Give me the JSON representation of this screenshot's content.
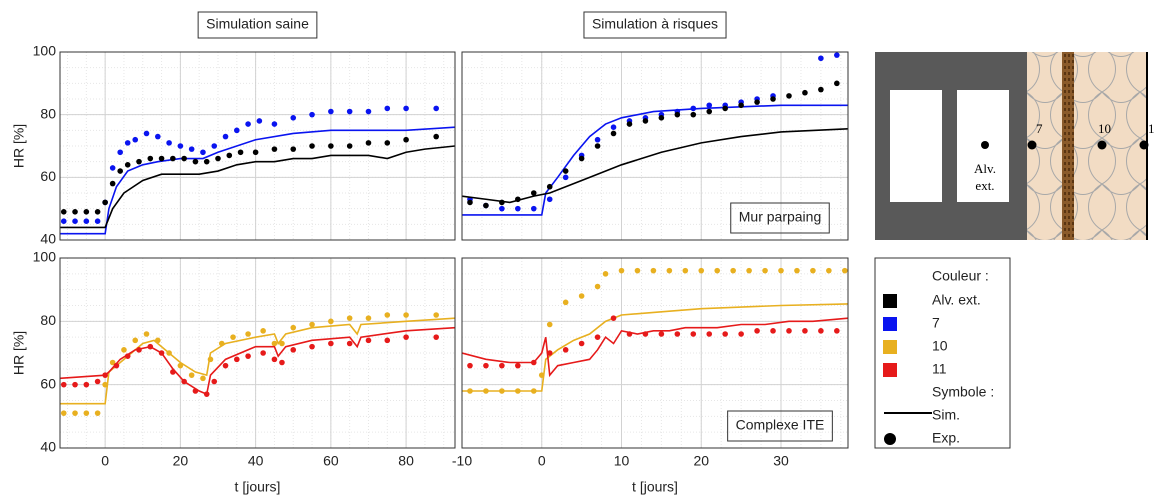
{
  "chart_data": [
    {
      "type": "line",
      "title": "Simulation saine",
      "ylabel": "HR [%]",
      "xlim": [
        -12,
        93
      ],
      "ylim": [
        40,
        100
      ],
      "xticks": [
        0,
        20,
        40,
        60,
        80
      ],
      "yticks": [
        40,
        60,
        80,
        100
      ],
      "grid": true,
      "show_xtick_labels": false,
      "show_ytick_labels": true,
      "series": [
        {
          "color": "#0a14f0",
          "marker": "line",
          "x": [
            -12,
            0,
            1,
            3,
            6,
            10,
            14,
            20,
            26,
            30,
            40,
            50,
            60,
            70,
            80,
            93
          ],
          "values": [
            42,
            42,
            50,
            57,
            62,
            64,
            65,
            66,
            66,
            68,
            72,
            74,
            75,
            75,
            75,
            76
          ]
        },
        {
          "color": "#0a14f0",
          "marker": "dot",
          "x": [
            -11,
            -8,
            -5,
            -2,
            0,
            2,
            4,
            6,
            8,
            11,
            14,
            17,
            20,
            23,
            26,
            29,
            32,
            35,
            38,
            41,
            45,
            50,
            55,
            60,
            65,
            70,
            75,
            80,
            88
          ],
          "values": [
            46,
            46,
            46,
            46,
            52,
            63,
            68,
            71,
            72,
            74,
            73,
            71,
            70,
            69,
            68,
            70,
            73,
            75,
            77,
            78,
            77,
            79,
            80,
            81,
            81,
            81,
            82,
            82,
            82
          ]
        },
        {
          "color": "#000000",
          "marker": "line",
          "x": [
            -12,
            0,
            2,
            5,
            10,
            15,
            20,
            25,
            30,
            35,
            40,
            45,
            50,
            55,
            60,
            65,
            70,
            75,
            80,
            85,
            93
          ],
          "values": [
            44,
            44,
            50,
            55,
            59,
            61,
            61,
            61,
            62,
            64,
            65,
            65,
            66,
            66,
            67,
            67,
            67,
            66,
            68,
            69,
            70
          ]
        },
        {
          "color": "#000000",
          "marker": "dot",
          "x": [
            -11,
            -8,
            -5,
            -2,
            0,
            2,
            4,
            6,
            9,
            12,
            15,
            18,
            21,
            24,
            27,
            30,
            33,
            36,
            40,
            45,
            50,
            55,
            60,
            65,
            70,
            75,
            80,
            88
          ],
          "values": [
            49,
            49,
            49,
            49,
            52,
            58,
            62,
            64,
            65,
            66,
            66,
            66,
            66,
            65,
            65,
            66,
            67,
            68,
            68,
            69,
            69,
            70,
            70,
            70,
            71,
            71,
            72,
            73
          ]
        }
      ]
    },
    {
      "type": "line",
      "title": "Simulation à risques",
      "annotation": "Mur parpaing",
      "xlim": [
        -10,
        38.4
      ],
      "ylim": [
        40,
        100
      ],
      "xticks": [
        -10,
        0,
        10,
        20,
        30
      ],
      "yticks": [
        40,
        60,
        80,
        100
      ],
      "grid": true,
      "show_xtick_labels": false,
      "show_ytick_labels": false,
      "series": [
        {
          "color": "#0a14f0",
          "marker": "line",
          "x": [
            -10,
            -5,
            0,
            0.5,
            2,
            4,
            6,
            8,
            10,
            14,
            20,
            25,
            30,
            38.4
          ],
          "values": [
            48,
            48,
            48,
            55,
            60,
            67,
            73,
            77,
            79,
            81,
            82,
            82.5,
            83,
            83
          ]
        },
        {
          "color": "#0a14f0",
          "marker": "dot",
          "x": [
            -9,
            -7,
            -5,
            -3,
            -1,
            1,
            3,
            5,
            7,
            9,
            11,
            13,
            15,
            17,
            19,
            21,
            23,
            25,
            27,
            29,
            35,
            37
          ],
          "values": [
            53,
            51,
            50,
            50,
            50,
            53,
            60,
            67,
            72,
            76,
            78,
            79,
            80,
            81,
            82,
            83,
            83,
            84,
            85,
            86,
            98,
            99
          ]
        },
        {
          "color": "#000000",
          "marker": "line",
          "x": [
            -10,
            -7,
            -4,
            -1,
            1,
            3,
            6,
            10,
            15,
            20,
            25,
            30,
            38.4
          ],
          "values": [
            54,
            53,
            52,
            54,
            55,
            57,
            60,
            64,
            68,
            71,
            73,
            74.5,
            75.5
          ]
        },
        {
          "color": "#000000",
          "marker": "dot",
          "x": [
            -9,
            -7,
            -5,
            -3,
            -1,
            1,
            3,
            5,
            7,
            9,
            11,
            13,
            15,
            17,
            19,
            21,
            23,
            25,
            27,
            29,
            31,
            33,
            35,
            37
          ],
          "values": [
            52,
            51,
            52,
            53,
            55,
            57,
            62,
            66,
            70,
            74,
            77,
            78,
            79,
            80,
            80,
            81,
            82,
            83,
            84,
            85,
            86,
            87,
            88,
            90
          ]
        }
      ]
    },
    {
      "type": "line",
      "xlabel": "t [jours]",
      "ylabel": "HR [%]",
      "xlim": [
        -12,
        93
      ],
      "ylim": [
        40,
        100
      ],
      "xticks": [
        0,
        20,
        40,
        60,
        80
      ],
      "yticks": [
        40,
        60,
        80,
        100
      ],
      "grid": true,
      "show_xtick_labels": true,
      "show_ytick_labels": true,
      "series": [
        {
          "color": "#e8b020",
          "marker": "line",
          "x": [
            -12,
            0,
            1,
            5,
            10,
            13,
            16,
            20,
            24,
            27,
            28,
            32,
            40,
            45,
            46,
            48,
            55,
            65,
            67,
            68,
            80,
            93
          ],
          "values": [
            54,
            54,
            64,
            68,
            73,
            74,
            71,
            67,
            64,
            63,
            70,
            73,
            75,
            76,
            73,
            76,
            78,
            79,
            76,
            79,
            80,
            81
          ]
        },
        {
          "color": "#e8b020",
          "marker": "dot",
          "x": [
            -11,
            -8,
            -5,
            -2,
            0,
            2,
            5,
            8,
            11,
            14,
            17,
            20,
            23,
            26,
            28,
            31,
            34,
            38,
            42,
            45,
            47,
            50,
            55,
            60,
            65,
            70,
            75,
            80,
            88
          ],
          "values": [
            51,
            51,
            51,
            51,
            60,
            67,
            71,
            74,
            76,
            74,
            70,
            66,
            63,
            62,
            68,
            73,
            75,
            76,
            77,
            73,
            73,
            78,
            79,
            80,
            81,
            81,
            82,
            82,
            82
          ]
        },
        {
          "color": "#e61a1a",
          "marker": "line",
          "x": [
            -12,
            0,
            1,
            4,
            8,
            12,
            15,
            18,
            21,
            25,
            27,
            28,
            32,
            40,
            45,
            46,
            48,
            55,
            65,
            67,
            68,
            80,
            93
          ],
          "values": [
            62,
            63,
            64,
            68,
            71,
            72,
            70,
            65,
            61,
            58,
            57,
            63,
            68,
            72,
            72,
            69,
            72,
            74,
            75,
            72,
            75,
            77,
            78
          ]
        },
        {
          "color": "#e61a1a",
          "marker": "dot",
          "x": [
            -11,
            -8,
            -5,
            -2,
            0,
            3,
            6,
            9,
            12,
            15,
            18,
            21,
            24,
            27,
            29,
            32,
            35,
            38,
            42,
            45,
            47,
            50,
            55,
            60,
            65,
            70,
            75,
            80,
            88
          ],
          "values": [
            60,
            60,
            60,
            61,
            63,
            66,
            69,
            71,
            72,
            70,
            64,
            61,
            58,
            57,
            61,
            66,
            68,
            69,
            70,
            68,
            67,
            71,
            72,
            73,
            73,
            74,
            74,
            75,
            75
          ]
        }
      ]
    },
    {
      "type": "line",
      "xlabel": "t [jours]",
      "annotation": "Complexe ITE",
      "xlim": [
        -10,
        38.4
      ],
      "ylim": [
        40,
        100
      ],
      "xticks": [
        -10,
        0,
        10,
        20,
        30
      ],
      "yticks": [
        40,
        60,
        80,
        100
      ],
      "grid": true,
      "show_xtick_labels": true,
      "show_ytick_labels": false,
      "series": [
        {
          "color": "#e8b020",
          "marker": "line",
          "x": [
            -10,
            -5,
            -1,
            0,
            0.5,
            2,
            4,
            6,
            8,
            10,
            15,
            20,
            25,
            30,
            38.4
          ],
          "values": [
            58,
            58,
            58,
            58,
            68,
            71,
            74,
            76,
            80,
            82,
            83,
            84,
            84.5,
            85,
            85.5
          ]
        },
        {
          "color": "#e8b020",
          "marker": "dot",
          "x": [
            -9,
            -7,
            -5,
            -3,
            -1,
            0,
            1,
            3,
            5,
            7,
            8,
            10,
            12,
            14,
            16,
            18,
            20,
            22,
            24,
            26,
            28,
            30,
            32,
            34,
            36,
            38
          ],
          "values": [
            58,
            58,
            58,
            58,
            58,
            63,
            79,
            86,
            88,
            91,
            95,
            96,
            96,
            96,
            96,
            96,
            96,
            96,
            96,
            96,
            96,
            96,
            96,
            96,
            96,
            96
          ]
        },
        {
          "color": "#e61a1a",
          "marker": "line",
          "x": [
            -10,
            -7,
            -4,
            -1,
            0,
            0.5,
            1,
            2,
            4,
            6,
            7,
            8,
            9,
            10,
            12,
            14,
            16,
            18,
            20,
            22,
            25,
            28,
            31,
            34,
            38.4
          ],
          "values": [
            70,
            68,
            67,
            67,
            70,
            75,
            63,
            66,
            67,
            68,
            71,
            75,
            73,
            77,
            76,
            77,
            77,
            78,
            78,
            78,
            79,
            79,
            80,
            80,
            81
          ]
        },
        {
          "color": "#e61a1a",
          "marker": "dot",
          "x": [
            -9,
            -7,
            -5,
            -3,
            -1,
            1,
            3,
            5,
            7,
            9,
            11,
            13,
            15,
            17,
            19,
            21,
            23,
            25,
            27,
            29,
            31,
            33,
            35,
            37
          ],
          "values": [
            66,
            66,
            66,
            66,
            67,
            70,
            71,
            73,
            75,
            81,
            76,
            76,
            76,
            76,
            76,
            76,
            76,
            76,
            77,
            77,
            77,
            77,
            77,
            77
          ]
        }
      ]
    }
  ],
  "legend": {
    "color_title": "Couleur :",
    "entries": [
      {
        "label": "Alv. ext.",
        "color": "#000000"
      },
      {
        "label": "7",
        "color": "#0a14f0"
      },
      {
        "label": "10",
        "color": "#e8b020"
      },
      {
        "label": "11",
        "color": "#e61a1a"
      }
    ],
    "symbol_title": "Symbole :",
    "symbols": [
      {
        "label": "Sim.",
        "marker": "line"
      },
      {
        "label": "Exp.",
        "marker": "dot"
      }
    ]
  },
  "diagram": {
    "labels": [
      "Alv.",
      "ext.",
      "7",
      "10",
      "1"
    ]
  }
}
